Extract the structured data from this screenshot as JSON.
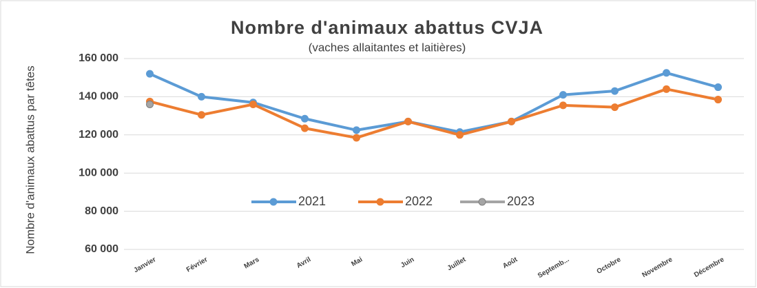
{
  "chart_data": {
    "type": "line",
    "title": "Nombre d'animaux abattus CVJA",
    "subtitle": "(vaches allaitantes et laitières)",
    "y_label": "Nombre d'animaux abattus par têtes",
    "categories": [
      "Janvier",
      "Février",
      "Mars",
      "Avril",
      "Mai",
      "Juin",
      "Juillet",
      "Août",
      "Septemb...",
      "Octobre",
      "Novembre",
      "Décembre"
    ],
    "series": [
      {
        "name": "2021",
        "color": "#5b9bd5",
        "values": [
          152000,
          140000,
          137000,
          128500,
          122500,
          127000,
          121500,
          127000,
          141000,
          143000,
          152500,
          145000
        ]
      },
      {
        "name": "2022",
        "color": "#ed7d31",
        "values": [
          137500,
          130500,
          136000,
          123500,
          118500,
          127000,
          120000,
          127000,
          135500,
          134500,
          144000,
          138500
        ]
      },
      {
        "name": "2023",
        "color": "#a5a5a5",
        "values": [
          136000,
          null,
          null,
          null,
          null,
          null,
          null,
          null,
          null,
          null,
          null,
          null
        ]
      }
    ],
    "ylim": [
      60000,
      160000
    ],
    "yticks": [
      {
        "value": 60000,
        "label": "60 000"
      },
      {
        "value": 80000,
        "label": "80 000"
      },
      {
        "value": 100000,
        "label": "100 000"
      },
      {
        "value": 120000,
        "label": "120 000"
      },
      {
        "value": 140000,
        "label": "140 000"
      },
      {
        "value": 160000,
        "label": "160 000"
      }
    ],
    "grid": true,
    "legend": "center"
  }
}
